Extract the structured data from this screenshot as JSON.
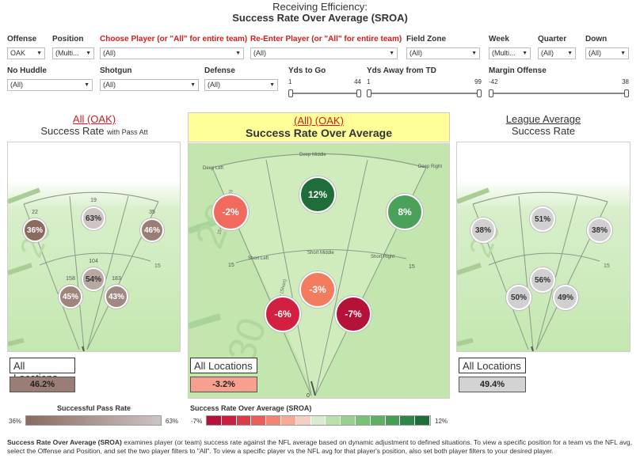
{
  "title": {
    "line1": "Receiving Efficiency:",
    "line2": "Success Rate Over Average (SROA)"
  },
  "filters_row1": [
    {
      "label": "Offense",
      "value": "OAK",
      "red": false
    },
    {
      "label": "Position",
      "value": "(Multi...",
      "red": false
    },
    {
      "label": "Choose Player (or \"All\" for entire team)",
      "value": "(All)",
      "red": true
    },
    {
      "label": "Re-Enter Player (or \"All\" for entire team)",
      "value": "(All)",
      "red": true
    },
    {
      "label": "Field Zone",
      "value": "(All)",
      "red": false
    },
    {
      "label": "Week",
      "value": "(Multi...",
      "red": false
    },
    {
      "label": "Quarter",
      "value": "(All)",
      "red": false
    },
    {
      "label": "Down",
      "value": "(All)",
      "red": false
    }
  ],
  "filters_row2": [
    {
      "label": "No Huddle",
      "value": "(All)"
    },
    {
      "label": "Shotgun",
      "value": "(All)"
    },
    {
      "label": "Defense",
      "value": "(All)"
    }
  ],
  "sliders": [
    {
      "label": "Yds to Go",
      "min": "1",
      "max": "44"
    },
    {
      "label": "Yds Away from TD",
      "min": "1",
      "max": "99"
    },
    {
      "label": "Margin Offense",
      "min": "-42",
      "max": "38"
    }
  ],
  "colors": {
    "accent_red": "#d01c1c",
    "highlight": "#ffff99",
    "field_green": "#c2e6ad",
    "dark_green": "#1f6e3a"
  },
  "panels": {
    "left": {
      "title": "All (OAK)",
      "subtitle": "Success Rate",
      "subtitle_small": "with Pass Att",
      "location": "All Locations",
      "value": "46.2%",
      "bubbles": [
        {
          "label": "36%",
          "count": "22",
          "color": "#8b6a60"
        },
        {
          "label": "63%",
          "count": "19",
          "color": "#cdc4c3"
        },
        {
          "label": "46%",
          "count": "35",
          "color": "#9a7d75"
        },
        {
          "label": "54%",
          "count": "104",
          "color": "#b7a8a3"
        },
        {
          "label": "45%",
          "count": "158",
          "color": "#a0857e"
        },
        {
          "label": "43%",
          "count": "183",
          "color": "#a18983"
        }
      ]
    },
    "center": {
      "title": "(All) (OAK)",
      "subtitle": "Success Rate Over Average",
      "location": "All Locations",
      "value": "-3.2%",
      "zones": {
        "deep_left": "Deep Left",
        "deep_middle": "Deep Middle",
        "deep_right": "Deep Right",
        "short_left": "Short Left",
        "short_middle": "Short Middle",
        "short_right": "Short Right"
      },
      "side_text": "0-15 Yds. in Air (Short)",
      "side_text2": "15+ Yds. in Air (Deep)",
      "line_15": "15",
      "origin": "0",
      "bubbles": [
        {
          "label": "-2%",
          "color": "#f06a5e"
        },
        {
          "label": "12%",
          "color": "#1f6e3a"
        },
        {
          "label": "8%",
          "color": "#4aa25a"
        },
        {
          "label": "-3%",
          "color": "#f47c5e"
        },
        {
          "label": "-6%",
          "color": "#d12040"
        },
        {
          "label": "-7%",
          "color": "#b5123a"
        }
      ]
    },
    "right": {
      "title": "League Average",
      "subtitle": "Success Rate",
      "location": "All Locations",
      "value": "49.4%",
      "bubbles": [
        {
          "label": "38%",
          "color": "#d0d0d0"
        },
        {
          "label": "51%",
          "color": "#d0d0d0"
        },
        {
          "label": "38%",
          "color": "#d0d0d0"
        },
        {
          "label": "56%",
          "color": "#d0d0d0"
        },
        {
          "label": "50%",
          "color": "#d0d0d0"
        },
        {
          "label": "49%",
          "color": "#d0d0d0"
        }
      ]
    }
  },
  "legends": {
    "pass_rate": {
      "title": "Successful Pass Rate",
      "min": "36%",
      "max": "63%"
    },
    "sroa": {
      "title": "Success Rate Over Average (SROA)",
      "min": "-7%",
      "max": "12%"
    }
  },
  "footnote": {
    "bold": "Success Rate Over Average (SROA)",
    "text": " examines player (or team) success rate against the NFL average based on dynamic adjustment to defined situations. To view a specific position for a team vs the NFL avg, select the Offense and Position, and set the two player filters to \"All\". To view a specific player vs the NFL avg for that player's position, also set both player filters to your desired player."
  }
}
